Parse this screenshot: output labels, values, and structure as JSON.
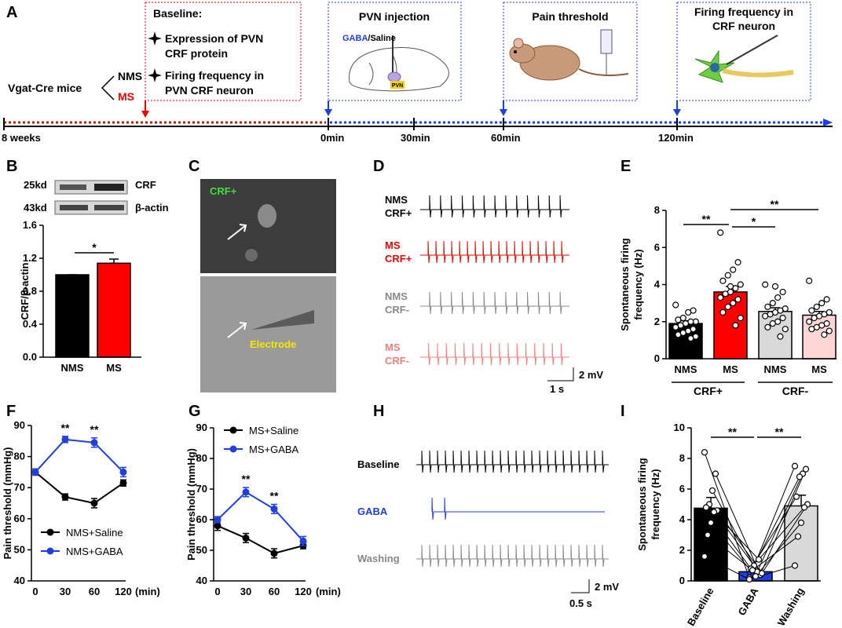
{
  "panel_labels": [
    "A",
    "B",
    "C",
    "D",
    "E",
    "F",
    "G",
    "H",
    "I"
  ],
  "timeline": {
    "cohort": "Vgat-Cre mice",
    "groups": [
      "NMS",
      "MS"
    ],
    "baseline_title": "Baseline:",
    "baseline_items": [
      [
        "Expression of PVN",
        "CRF protein"
      ],
      [
        "Firing frequency in",
        "PVN CRF neuron"
      ]
    ],
    "steps": [
      [
        "PVN injection"
      ],
      [
        "Pain threshold"
      ],
      [
        "Firing frequency in",
        "CRF neuron"
      ]
    ],
    "injection_label": [
      "GABA",
      "/Saline"
    ],
    "pvn_tag": "PVN",
    "times": [
      "8 weeks",
      "0min",
      "30min",
      "60min",
      "120min"
    ]
  },
  "blot": {
    "sizes": [
      "25kd",
      "43kd"
    ],
    "proteins": [
      "CRF",
      "β-actin"
    ]
  },
  "images": {
    "labels": [
      "CRF+",
      "Electrode"
    ]
  },
  "traces_d": {
    "labels": [
      [
        "NMS",
        "CRF+"
      ],
      [
        "MS",
        "CRF+"
      ],
      [
        "NMS",
        "CRF-"
      ],
      [
        "MS",
        "CRF-"
      ]
    ],
    "scale_v": "2 mV",
    "scale_t": "1 s"
  },
  "traces_h": {
    "labels": [
      "Baseline",
      "GABA",
      "Washing"
    ],
    "scale_v": "2 mV",
    "scale_t": "0.5 s"
  },
  "chart_data": [
    {
      "type": "bar",
      "y_label": "CRF/β-actin",
      "categories": [
        "NMS",
        "MS"
      ],
      "values": [
        1.0,
        1.14
      ],
      "errors": [
        0,
        0.05
      ],
      "colors": [
        "#000000",
        "#ff0000"
      ],
      "ylim": [
        0,
        1.6
      ],
      "yticks": [
        {
          "value": 0,
          "label": "0.0"
        },
        {
          "value": 0.4,
          "label": "0.4"
        },
        {
          "value": 0.8,
          "label": "0.8"
        },
        {
          "value": 1.2,
          "label": "1.2"
        },
        {
          "value": 1.6,
          "label": "1.6"
        }
      ],
      "annotations": [
        "*"
      ]
    },
    {
      "type": "bar",
      "y_label": [
        "Spontaneous firing",
        "frequency (Hz)"
      ],
      "categories": [
        "NMS",
        "MS",
        "NMS",
        "MS"
      ],
      "group_labels": [
        "CRF+",
        "CRF-"
      ],
      "values": [
        1.9,
        3.6,
        2.55,
        2.35
      ],
      "errors": [
        0.15,
        0.3,
        0.2,
        0.2
      ],
      "colors": [
        "#000000",
        "#ff0000",
        "#d9d9d9",
        "#ffd6d6"
      ],
      "points": [
        [
          2.9,
          2.6,
          2.5,
          2.2,
          2.1,
          2.0,
          2.0,
          1.9,
          1.8,
          1.7,
          1.6,
          1.5,
          1.4,
          1.3,
          1.2,
          1.1,
          1.9
        ],
        [
          6.8,
          5.2,
          4.8,
          4.5,
          4.2,
          4.0,
          3.8,
          3.6,
          3.5,
          3.3,
          3.2,
          3.0,
          2.8,
          2.5,
          2.2,
          1.8,
          3.9
        ],
        [
          4.0,
          3.6,
          3.3,
          3.0,
          2.8,
          2.7,
          2.6,
          2.5,
          2.4,
          2.3,
          2.2,
          2.0,
          1.9,
          1.7,
          1.6,
          1.2,
          3.9
        ],
        [
          4.2,
          3.2,
          3.0,
          2.8,
          2.6,
          2.5,
          2.4,
          2.3,
          2.2,
          2.0,
          1.9,
          1.8,
          1.7,
          1.6,
          1.5,
          1.3
        ]
      ],
      "ylim": [
        0,
        8
      ],
      "yticks": [
        0,
        2,
        4,
        6,
        8
      ],
      "annotations": [
        "**",
        "*",
        "**"
      ]
    },
    {
      "type": "line",
      "y_label": "Pain threshold (mmHg)",
      "categories": [
        "0",
        "30",
        "60",
        "120"
      ],
      "x_unit": "(min)",
      "ylim": [
        40,
        90
      ],
      "yticks": [
        40,
        50,
        60,
        70,
        80,
        90
      ],
      "series": [
        {
          "name": "NMS+Saline",
          "color": "#000000",
          "values": [
            75,
            67,
            65,
            71.5
          ],
          "errors": [
            1,
            1,
            1.5,
            1
          ]
        },
        {
          "name": "NMS+GABA",
          "color": "#1f3fe0",
          "values": [
            75,
            85.5,
            84.5,
            75
          ],
          "errors": [
            1,
            1,
            1.5,
            1.5
          ]
        }
      ],
      "annotations": [
        "**",
        "**"
      ]
    },
    {
      "type": "line",
      "y_label": "Pain threshold (mmHg)",
      "categories": [
        "0",
        "30",
        "60",
        "120"
      ],
      "x_unit": "(min)",
      "ylim": [
        40,
        90
      ],
      "yticks": [
        40,
        50,
        60,
        70,
        80,
        90
      ],
      "series": [
        {
          "name": "MS+Saline",
          "color": "#000000",
          "values": [
            58,
            54,
            49,
            51.5
          ],
          "errors": [
            1.5,
            1.5,
            1.5,
            1
          ]
        },
        {
          "name": "MS+GABA",
          "color": "#1f3fe0",
          "values": [
            60,
            69,
            63.5,
            53
          ],
          "errors": [
            1,
            1.5,
            1.5,
            1.5
          ]
        }
      ],
      "annotations": [
        "**",
        "**"
      ]
    },
    {
      "type": "bar",
      "y_label": [
        "Spontaneous firing",
        "frequency (Hz)"
      ],
      "categories": [
        "Baseline",
        "GABA",
        "Washing"
      ],
      "values": [
        4.75,
        0.6,
        4.9
      ],
      "errors": [
        0.7,
        0.15,
        0.7
      ],
      "colors": [
        "#000000",
        "#1f3fe0",
        "#d9d9d9"
      ],
      "paired": true,
      "points": [
        [
          8.4,
          7.0,
          5.9,
          5.0,
          4.8,
          4.6,
          4.5,
          3.8,
          3.0,
          1.6
        ],
        [
          0.2,
          0.4,
          0.6,
          1.0,
          0.8,
          0.5,
          1.4,
          0.3,
          0.7,
          0.1
        ],
        [
          7.5,
          7.3,
          7.0,
          6.8,
          5.5,
          5.0,
          4.8,
          3.8,
          2.9,
          1.0
        ]
      ],
      "ylim": [
        0,
        10
      ],
      "yticks": [
        0,
        2,
        4,
        6,
        8,
        10
      ],
      "annotations": [
        "**",
        "**"
      ]
    }
  ]
}
